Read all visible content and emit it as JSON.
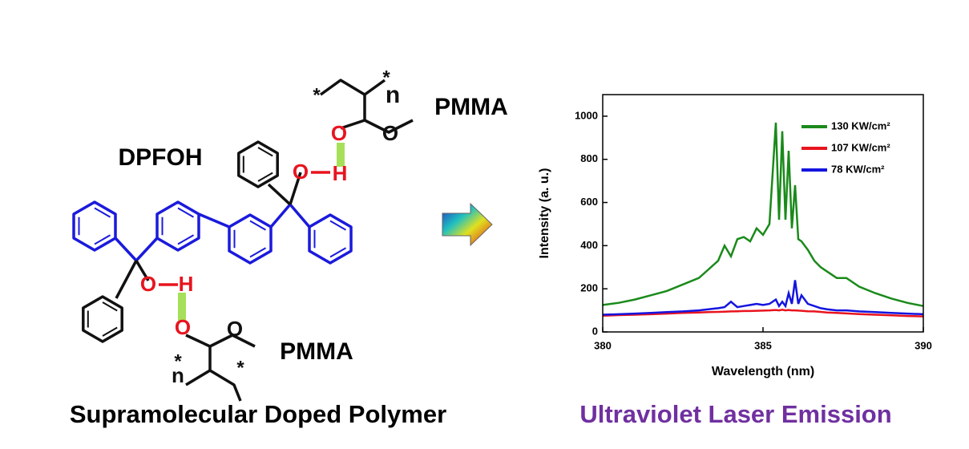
{
  "scheme": {
    "molecule": "DPFOH",
    "polymer_top": "PMMA",
    "polymer_bottom": "PMMA",
    "oxygen": "O",
    "hydrogen": "H",
    "repeat": "n",
    "end": "*"
  },
  "captions": {
    "left": "Supramolecular Doped Polymer",
    "right": "Ultraviolet Laser Emission"
  },
  "chart_data": {
    "type": "line",
    "x_label": "Wavelength (nm)",
    "y_label": "Intensity (a. u.)",
    "x": [
      380,
      380.5,
      381,
      381.5,
      382,
      382.5,
      383,
      383.3,
      383.6,
      383.8,
      384.0,
      384.2,
      384.4,
      384.6,
      384.8,
      385.0,
      385.2,
      385.4,
      385.5,
      385.6,
      385.7,
      385.8,
      385.9,
      386.0,
      386.1,
      386.2,
      386.4,
      386.6,
      386.8,
      387.0,
      387.3,
      387.6,
      388,
      388.5,
      389,
      389.5,
      390
    ],
    "series": [
      {
        "name": "130 KW/cm²",
        "color": "#1a8a1a",
        "values": [
          125,
          135,
          150,
          170,
          190,
          220,
          250,
          290,
          330,
          400,
          350,
          430,
          440,
          420,
          480,
          450,
          500,
          970,
          520,
          930,
          520,
          840,
          480,
          680,
          430,
          420,
          380,
          330,
          300,
          280,
          250,
          250,
          210,
          180,
          155,
          135,
          120
        ]
      },
      {
        "name": "107 KW/cm²",
        "color": "#e8141e",
        "values": [
          75,
          78,
          80,
          82,
          85,
          88,
          90,
          92,
          93,
          94,
          95,
          96,
          97,
          97,
          98,
          99,
          100,
          102,
          100,
          103,
          100,
          102,
          100,
          100,
          99,
          98,
          96,
          95,
          93,
          90,
          88,
          86,
          83,
          80,
          77,
          74,
          72
        ]
      },
      {
        "name": "78 KW/cm²",
        "color": "#1414e0",
        "values": [
          80,
          82,
          85,
          88,
          92,
          95,
          100,
          105,
          110,
          115,
          140,
          115,
          120,
          125,
          130,
          125,
          130,
          150,
          120,
          140,
          120,
          180,
          130,
          240,
          130,
          170,
          130,
          120,
          110,
          105,
          100,
          100,
          95,
          92,
          88,
          85,
          82
        ]
      }
    ],
    "xlim": [
      380,
      390
    ],
    "xticks": [
      380,
      385,
      390
    ],
    "ylim": [
      0,
      1100
    ],
    "yticks": [
      0,
      200,
      400,
      600,
      800,
      1000
    ],
    "legend": "upper-right"
  }
}
